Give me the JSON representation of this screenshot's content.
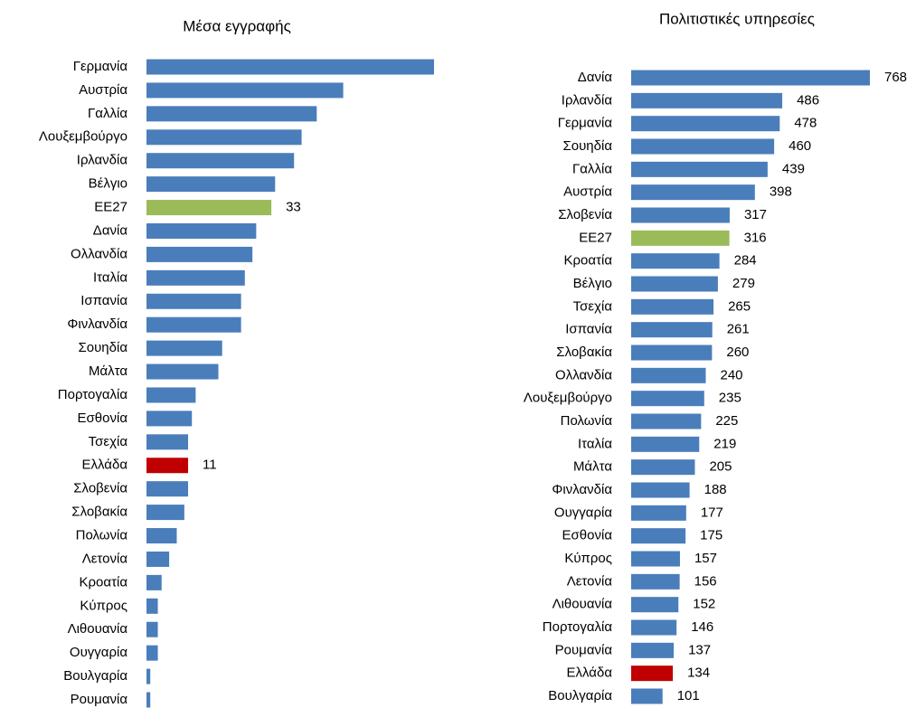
{
  "chart_data": [
    {
      "type": "bar",
      "title": "Μέσα εγγραφής",
      "categories": [
        "Γερμανία",
        "Αυστρία",
        "Γαλλία",
        "Λουξεμβούργο",
        "Ιρλανδία",
        "Βέλγιο",
        "ΕΕ27",
        "Δανία",
        "Ολλανδία",
        "Ιταλία",
        "Ισπανία",
        "Φινλανδία",
        "Σουηδία",
        "Μάλτα",
        "Πορτογαλία",
        "Εσθονία",
        "Τσεχία",
        "Ελλάδα",
        "Σλοβενία",
        "Σλοβακία",
        "Πολωνία",
        "Λετονία",
        "Κροατία",
        "Κύπρος",
        "Λιθουανία",
        "Ουγγαρία",
        "Βουλγαρία",
        "Ρουμανία"
      ],
      "values": [
        76,
        52,
        45,
        41,
        39,
        34,
        33,
        29,
        28,
        26,
        25,
        25,
        20,
        19,
        13,
        12,
        11,
        11,
        11,
        10,
        8,
        6,
        4,
        3,
        3,
        3,
        1,
        1
      ],
      "value_labels": [
        null,
        null,
        null,
        null,
        null,
        null,
        "33",
        null,
        null,
        null,
        null,
        null,
        null,
        null,
        null,
        null,
        null,
        "11",
        null,
        null,
        null,
        null,
        null,
        null,
        null,
        null,
        null,
        null
      ],
      "colors": [
        "#4a7ebb",
        "#4a7ebb",
        "#4a7ebb",
        "#4a7ebb",
        "#4a7ebb",
        "#4a7ebb",
        "#9bbb59",
        "#4a7ebb",
        "#4a7ebb",
        "#4a7ebb",
        "#4a7ebb",
        "#4a7ebb",
        "#4a7ebb",
        "#4a7ebb",
        "#4a7ebb",
        "#4a7ebb",
        "#4a7ebb",
        "#c00000",
        "#4a7ebb",
        "#4a7ebb",
        "#4a7ebb",
        "#4a7ebb",
        "#4a7ebb",
        "#4a7ebb",
        "#4a7ebb",
        "#4a7ebb",
        "#4a7ebb",
        "#4a7ebb"
      ]
    },
    {
      "type": "bar",
      "title": "Πολιτιστικές υπηρεσίες",
      "categories": [
        "Δανία",
        "Ιρλανδία",
        "Γερμανία",
        "Σουηδία",
        "Γαλλία",
        "Αυστρία",
        "Σλοβενία",
        "ΕΕ27",
        "Κροατία",
        "Βέλγιο",
        "Τσεχία",
        "Ισπανία",
        "Σλοβακία",
        "Ολλανδία",
        "Λουξεμβούργο",
        "Πολωνία",
        "Ιταλία",
        "Μάλτα",
        "Φινλανδία",
        "Ουγγαρία",
        "Εσθονία",
        "Κύπρος",
        "Λετονία",
        "Λιθουανία",
        "Πορτογαλία",
        "Ρουμανία",
        "Ελλάδα",
        "Βουλγαρία"
      ],
      "values": [
        768,
        486,
        478,
        460,
        439,
        398,
        317,
        316,
        284,
        279,
        265,
        261,
        260,
        240,
        235,
        225,
        219,
        205,
        188,
        177,
        175,
        157,
        156,
        152,
        146,
        137,
        134,
        101
      ],
      "value_labels": [
        "768",
        "486",
        "478",
        "460",
        "439",
        "398",
        "317",
        "316",
        "284",
        "279",
        "265",
        "261",
        "260",
        "240",
        "235",
        "225",
        "219",
        "205",
        "188",
        "177",
        "175",
        "157",
        "156",
        "152",
        "146",
        "137",
        "134",
        "101"
      ],
      "colors": [
        "#4a7ebb",
        "#4a7ebb",
        "#4a7ebb",
        "#4a7ebb",
        "#4a7ebb",
        "#4a7ebb",
        "#4a7ebb",
        "#9bbb59",
        "#4a7ebb",
        "#4a7ebb",
        "#4a7ebb",
        "#4a7ebb",
        "#4a7ebb",
        "#4a7ebb",
        "#4a7ebb",
        "#4a7ebb",
        "#4a7ebb",
        "#4a7ebb",
        "#4a7ebb",
        "#4a7ebb",
        "#4a7ebb",
        "#4a7ebb",
        "#4a7ebb",
        "#4a7ebb",
        "#4a7ebb",
        "#4a7ebb",
        "#c00000",
        "#4a7ebb"
      ]
    }
  ]
}
